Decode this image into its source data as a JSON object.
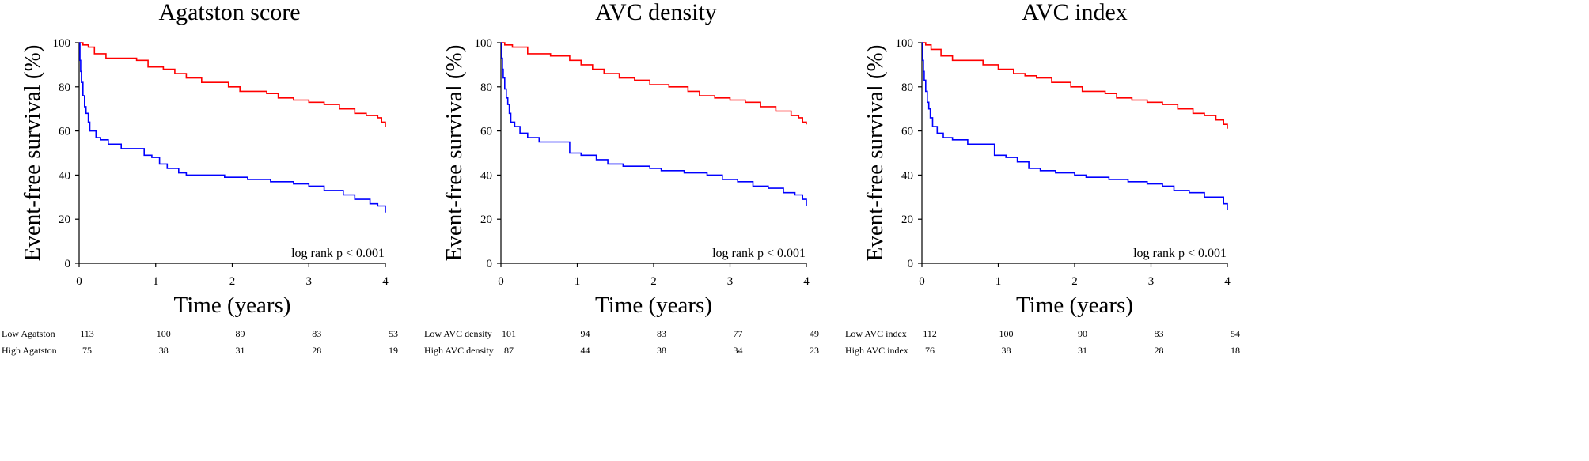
{
  "chart_data": [
    {
      "type": "line",
      "title": "Agatston score",
      "xlabel": "Time (years)",
      "ylabel": "Event-free survival (%)",
      "xlim": [
        0,
        4
      ],
      "ylim": [
        0,
        100
      ],
      "xticks": [
        "0",
        "1",
        "2",
        "3",
        "4"
      ],
      "yticks": [
        "0",
        "20",
        "40",
        "60",
        "80",
        "100"
      ],
      "annotation": "log rank p < 0.001",
      "grid": false,
      "series": [
        {
          "color": "#ff0000",
          "points": [
            [
              0,
              100
            ],
            [
              0.05,
              99
            ],
            [
              0.12,
              98
            ],
            [
              0.2,
              95
            ],
            [
              0.35,
              93
            ],
            [
              0.55,
              93
            ],
            [
              0.75,
              92
            ],
            [
              0.9,
              89
            ],
            [
              1.1,
              88
            ],
            [
              1.25,
              86
            ],
            [
              1.4,
              84
            ],
            [
              1.6,
              82
            ],
            [
              1.8,
              82
            ],
            [
              1.95,
              80
            ],
            [
              2.1,
              78
            ],
            [
              2.3,
              78
            ],
            [
              2.45,
              77
            ],
            [
              2.6,
              75
            ],
            [
              2.8,
              74
            ],
            [
              3.0,
              73
            ],
            [
              3.2,
              72
            ],
            [
              3.4,
              70
            ],
            [
              3.6,
              68
            ],
            [
              3.75,
              67
            ],
            [
              3.9,
              66
            ],
            [
              3.95,
              64
            ],
            [
              4.0,
              62
            ]
          ]
        },
        {
          "color": "#0000ff",
          "points": [
            [
              0,
              100
            ],
            [
              0.01,
              92
            ],
            [
              0.02,
              87
            ],
            [
              0.03,
              82
            ],
            [
              0.05,
              76
            ],
            [
              0.07,
              71
            ],
            [
              0.09,
              68
            ],
            [
              0.12,
              64
            ],
            [
              0.14,
              60
            ],
            [
              0.22,
              57
            ],
            [
              0.28,
              56
            ],
            [
              0.38,
              54
            ],
            [
              0.55,
              52
            ],
            [
              0.85,
              49
            ],
            [
              0.95,
              48
            ],
            [
              1.05,
              45
            ],
            [
              1.15,
              43
            ],
            [
              1.3,
              41
            ],
            [
              1.4,
              40
            ],
            [
              1.7,
              40
            ],
            [
              1.9,
              39
            ],
            [
              2.2,
              38
            ],
            [
              2.5,
              37
            ],
            [
              2.8,
              36
            ],
            [
              3.0,
              35
            ],
            [
              3.2,
              33
            ],
            [
              3.45,
              31
            ],
            [
              3.6,
              29
            ],
            [
              3.8,
              27
            ],
            [
              3.9,
              26
            ],
            [
              4.0,
              23
            ]
          ]
        }
      ],
      "risk_table": {
        "rows": [
          {
            "label": "Low Agatston",
            "values": [
              "113",
              "100",
              "89",
              "83",
              "53"
            ]
          },
          {
            "label": "High Agatston",
            "values": [
              "75",
              "38",
              "31",
              "28",
              "19"
            ]
          }
        ]
      }
    },
    {
      "type": "line",
      "title": "AVC density",
      "xlabel": "Time (years)",
      "ylabel": "Event-free survival (%)",
      "xlim": [
        0,
        4
      ],
      "ylim": [
        0,
        100
      ],
      "xticks": [
        "0",
        "1",
        "2",
        "3",
        "4"
      ],
      "yticks": [
        "0",
        "20",
        "40",
        "60",
        "80",
        "100"
      ],
      "annotation": "log rank p < 0.001",
      "grid": false,
      "series": [
        {
          "color": "#ff0000",
          "points": [
            [
              0,
              100
            ],
            [
              0.05,
              99
            ],
            [
              0.15,
              98
            ],
            [
              0.35,
              95
            ],
            [
              0.65,
              94
            ],
            [
              0.9,
              92
            ],
            [
              1.05,
              90
            ],
            [
              1.2,
              88
            ],
            [
              1.35,
              86
            ],
            [
              1.55,
              84
            ],
            [
              1.75,
              83
            ],
            [
              1.95,
              81
            ],
            [
              2.2,
              80
            ],
            [
              2.45,
              78
            ],
            [
              2.6,
              76
            ],
            [
              2.8,
              75
            ],
            [
              3.0,
              74
            ],
            [
              3.2,
              73
            ],
            [
              3.4,
              71
            ],
            [
              3.6,
              69
            ],
            [
              3.8,
              67
            ],
            [
              3.9,
              66
            ],
            [
              3.95,
              64
            ],
            [
              4.0,
              63
            ]
          ]
        },
        {
          "color": "#0000ff",
          "points": [
            [
              0,
              100
            ],
            [
              0.01,
              93
            ],
            [
              0.02,
              88
            ],
            [
              0.03,
              84
            ],
            [
              0.05,
              79
            ],
            [
              0.07,
              75
            ],
            [
              0.09,
              72
            ],
            [
              0.11,
              68
            ],
            [
              0.13,
              64
            ],
            [
              0.18,
              62
            ],
            [
              0.25,
              59
            ],
            [
              0.35,
              57
            ],
            [
              0.5,
              55
            ],
            [
              0.9,
              50
            ],
            [
              1.05,
              49
            ],
            [
              1.25,
              47
            ],
            [
              1.4,
              45
            ],
            [
              1.6,
              44
            ],
            [
              1.95,
              43
            ],
            [
              2.1,
              42
            ],
            [
              2.4,
              41
            ],
            [
              2.7,
              40
            ],
            [
              2.9,
              38
            ],
            [
              3.1,
              37
            ],
            [
              3.3,
              35
            ],
            [
              3.5,
              34
            ],
            [
              3.7,
              32
            ],
            [
              3.85,
              31
            ],
            [
              3.95,
              29
            ],
            [
              4.0,
              26
            ]
          ]
        }
      ],
      "risk_table": {
        "rows": [
          {
            "label": "Low AVC density",
            "values": [
              "101",
              "94",
              "83",
              "77",
              "49"
            ]
          },
          {
            "label": "High AVC density",
            "values": [
              "87",
              "44",
              "38",
              "34",
              "23"
            ]
          }
        ]
      }
    },
    {
      "type": "line",
      "title": "AVC index",
      "xlabel": "Time (years)",
      "ylabel": "Event-free survival (%)",
      "xlim": [
        0,
        4
      ],
      "ylim": [
        0,
        100
      ],
      "xticks": [
        "0",
        "1",
        "2",
        "3",
        "4"
      ],
      "yticks": [
        "0",
        "20",
        "40",
        "60",
        "80",
        "100"
      ],
      "annotation": "log rank p < 0.001",
      "grid": false,
      "series": [
        {
          "color": "#ff0000",
          "points": [
            [
              0,
              100
            ],
            [
              0.05,
              99
            ],
            [
              0.12,
              97
            ],
            [
              0.25,
              94
            ],
            [
              0.4,
              92
            ],
            [
              0.65,
              92
            ],
            [
              0.8,
              90
            ],
            [
              1.0,
              88
            ],
            [
              1.2,
              86
            ],
            [
              1.35,
              85
            ],
            [
              1.5,
              84
            ],
            [
              1.7,
              82
            ],
            [
              1.95,
              80
            ],
            [
              2.1,
              78
            ],
            [
              2.4,
              77
            ],
            [
              2.55,
              75
            ],
            [
              2.75,
              74
            ],
            [
              2.95,
              73
            ],
            [
              3.15,
              72
            ],
            [
              3.35,
              70
            ],
            [
              3.55,
              68
            ],
            [
              3.7,
              67
            ],
            [
              3.85,
              65
            ],
            [
              3.95,
              63
            ],
            [
              4.0,
              61
            ]
          ]
        },
        {
          "color": "#0000ff",
          "points": [
            [
              0,
              100
            ],
            [
              0.01,
              92
            ],
            [
              0.02,
              87
            ],
            [
              0.03,
              83
            ],
            [
              0.05,
              78
            ],
            [
              0.07,
              73
            ],
            [
              0.09,
              70
            ],
            [
              0.11,
              66
            ],
            [
              0.14,
              62
            ],
            [
              0.2,
              59
            ],
            [
              0.28,
              57
            ],
            [
              0.4,
              56
            ],
            [
              0.6,
              54
            ],
            [
              0.95,
              49
            ],
            [
              1.1,
              48
            ],
            [
              1.25,
              46
            ],
            [
              1.4,
              43
            ],
            [
              1.55,
              42
            ],
            [
              1.75,
              41
            ],
            [
              2.0,
              40
            ],
            [
              2.15,
              39
            ],
            [
              2.45,
              38
            ],
            [
              2.7,
              37
            ],
            [
              2.95,
              36
            ],
            [
              3.15,
              35
            ],
            [
              3.3,
              33
            ],
            [
              3.5,
              32
            ],
            [
              3.7,
              30
            ],
            [
              3.95,
              27
            ],
            [
              4.0,
              24
            ]
          ]
        }
      ],
      "risk_table": {
        "rows": [
          {
            "label": "Low AVC index",
            "values": [
              "112",
              "100",
              "90",
              "83",
              "54"
            ]
          },
          {
            "label": "High AVC index",
            "values": [
              "76",
              "38",
              "31",
              "28",
              "18"
            ]
          }
        ]
      }
    }
  ]
}
